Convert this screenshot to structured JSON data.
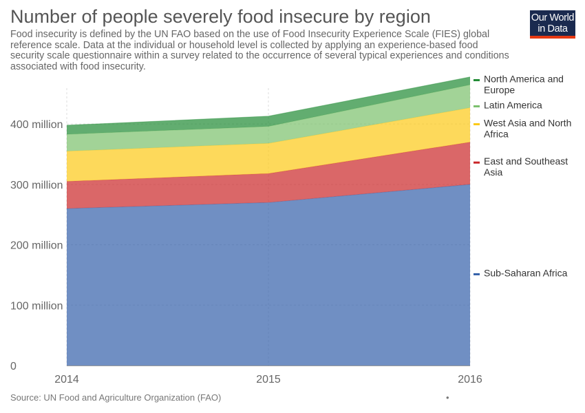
{
  "title": "Number of people severely food insecure by region",
  "subtitle": "Food insecurity is defined by the UN FAO based on the use of Food Insecurity Experience Scale (FIES) global reference scale. Data at the individual or household level is collected by applying an experience-based food security scale questionnaire within a survey related to the occurrence of several typical experiences and conditions associated with food insecurity.",
  "logo": {
    "line1": "Our World",
    "line2": "in Data"
  },
  "source": "Source: UN Food and Agriculture Organization (FAO)",
  "footer_dot": "•",
  "chart_data": {
    "type": "area",
    "stacked": true,
    "x": [
      2014,
      2015,
      2016
    ],
    "x_tick_labels": [
      "2014",
      "2015",
      "2016"
    ],
    "ylim": [
      0,
      480
    ],
    "y_ticks": [
      0,
      100,
      200,
      300,
      400
    ],
    "y_tick_labels": [
      "0",
      "100 million",
      "200 million",
      "300 million",
      "400 million"
    ],
    "grid": "horizontal dashed",
    "legend_position": "right",
    "series": [
      {
        "name": "Sub-Saharan Africa",
        "color": "#3360a9",
        "values": [
          260,
          270,
          300
        ]
      },
      {
        "name": "East and Southeast Asia",
        "color": "#ca2628",
        "values": [
          45,
          48,
          70
        ]
      },
      {
        "name": "West Asia and North Africa",
        "color": "#fcc916",
        "values": [
          50,
          50,
          57
        ]
      },
      {
        "name": "Latin America",
        "color": "#7ac06b",
        "values": [
          28,
          28,
          38
        ]
      },
      {
        "name": "North America and Europe",
        "color": "#1f8a33",
        "values": [
          15,
          17,
          13
        ]
      }
    ]
  }
}
